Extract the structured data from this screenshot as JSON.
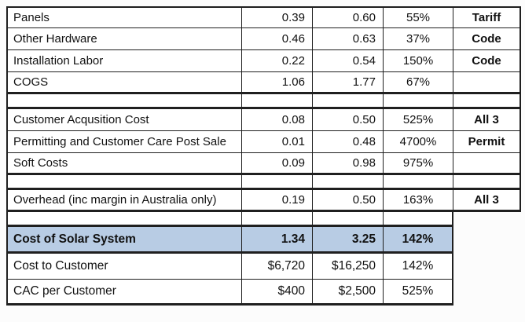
{
  "styles": {
    "highlight_row_color": "#b8cce4",
    "border_color": "#1f1f1f",
    "page_background": "#fcfcfc",
    "text_color": "#111111"
  },
  "chart_data": {
    "type": "table",
    "grid": true,
    "highlight_row_index": 8,
    "rows": [
      {
        "label": "Panels",
        "col2": "0.39",
        "col3": "0.60",
        "pct": "55%",
        "note": "Tariff"
      },
      {
        "label": "Other Hardware",
        "col2": "0.46",
        "col3": "0.63",
        "pct": "37%",
        "note": "Code"
      },
      {
        "label": "Installation Labor",
        "col2": "0.22",
        "col3": "0.54",
        "pct": "150%",
        "note": "Code"
      },
      {
        "label": "COGS",
        "col2": "1.06",
        "col3": "1.77",
        "pct": "67%",
        "note": ""
      },
      {
        "label": "Customer Acqusition Cost",
        "col2": "0.08",
        "col3": "0.50",
        "pct": "525%",
        "note": "All 3"
      },
      {
        "label": "Permitting and Customer Care Post Sale",
        "col2": "0.01",
        "col3": "0.48",
        "pct": "4700%",
        "note": "Permit"
      },
      {
        "label": "Soft Costs",
        "col2": "0.09",
        "col3": "0.98",
        "pct": "975%",
        "note": ""
      },
      {
        "label": "Overhead (inc margin in Australia only)",
        "col2": "0.19",
        "col3": "0.50",
        "pct": "163%",
        "note": "All 3"
      },
      {
        "label": "Cost of Solar System",
        "col2": "1.34",
        "col3": "3.25",
        "pct": "142%"
      },
      {
        "label": "Cost to Customer",
        "col2": "$6,720",
        "col3": "$16,250",
        "pct": "142%"
      },
      {
        "label": "CAC per Customer",
        "col2": "$400",
        "col3": "$2,500",
        "pct": "525%"
      }
    ]
  }
}
